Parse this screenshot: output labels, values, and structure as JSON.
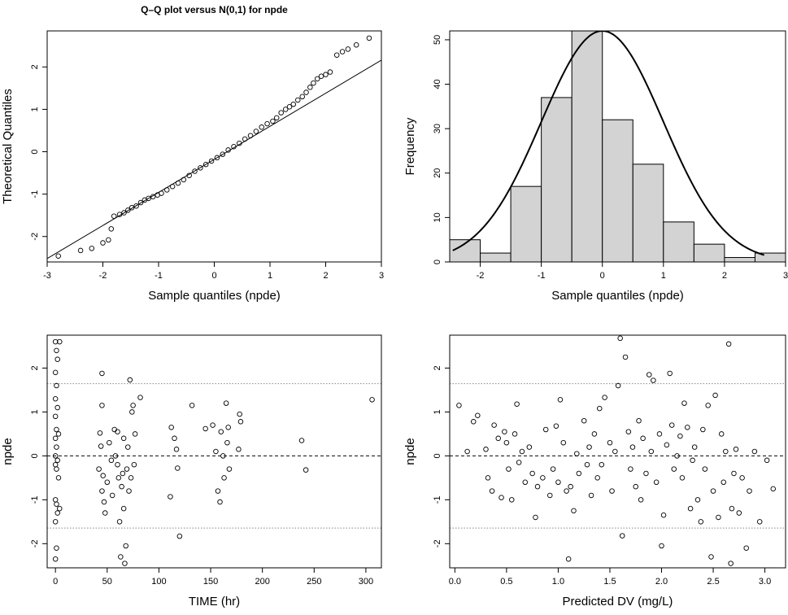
{
  "chart_data": [
    {
      "id": "qq",
      "type": "scatter",
      "title": "Q–Q plot versus N(0,1) for npde",
      "xlabel": "Sample quantiles (npde)",
      "ylabel": "Theoretical Quantiles",
      "xlim": [
        -3,
        3
      ],
      "ylim": [
        -2.6,
        2.85
      ],
      "xticks": [
        -3,
        -2,
        -1,
        0,
        1,
        2,
        3
      ],
      "yticks": [
        -2,
        -1,
        0,
        1,
        2
      ],
      "reference_line": {
        "slope": 0.78,
        "intercept": -0.18
      },
      "points": [
        [
          -2.8,
          -2.46
        ],
        [
          -2.4,
          -2.33
        ],
        [
          -2.2,
          -2.28
        ],
        [
          -2.0,
          -2.15
        ],
        [
          -1.9,
          -2.08
        ],
        [
          -1.85,
          -1.82
        ],
        [
          -1.8,
          -1.52
        ],
        [
          -1.7,
          -1.48
        ],
        [
          -1.62,
          -1.44
        ],
        [
          -1.55,
          -1.38
        ],
        [
          -1.48,
          -1.32
        ],
        [
          -1.4,
          -1.28
        ],
        [
          -1.32,
          -1.2
        ],
        [
          -1.25,
          -1.14
        ],
        [
          -1.18,
          -1.1
        ],
        [
          -1.1,
          -1.06
        ],
        [
          -1.02,
          -1.02
        ],
        [
          -0.95,
          -0.98
        ],
        [
          -0.85,
          -0.9
        ],
        [
          -0.75,
          -0.82
        ],
        [
          -0.65,
          -0.74
        ],
        [
          -0.55,
          -0.66
        ],
        [
          -0.45,
          -0.56
        ],
        [
          -0.35,
          -0.46
        ],
        [
          -0.25,
          -0.38
        ],
        [
          -0.15,
          -0.3
        ],
        [
          -0.05,
          -0.22
        ],
        [
          0.05,
          -0.14
        ],
        [
          0.15,
          -0.06
        ],
        [
          0.25,
          0.04
        ],
        [
          0.35,
          0.12
        ],
        [
          0.45,
          0.2
        ],
        [
          0.55,
          0.3
        ],
        [
          0.65,
          0.38
        ],
        [
          0.75,
          0.48
        ],
        [
          0.85,
          0.58
        ],
        [
          0.95,
          0.66
        ],
        [
          1.05,
          0.72
        ],
        [
          1.12,
          0.8
        ],
        [
          1.2,
          0.92
        ],
        [
          1.28,
          1.0
        ],
        [
          1.35,
          1.06
        ],
        [
          1.42,
          1.12
        ],
        [
          1.5,
          1.22
        ],
        [
          1.58,
          1.3
        ],
        [
          1.65,
          1.4
        ],
        [
          1.72,
          1.52
        ],
        [
          1.78,
          1.62
        ],
        [
          1.85,
          1.72
        ],
        [
          1.92,
          1.78
        ],
        [
          2.0,
          1.82
        ],
        [
          2.08,
          1.88
        ],
        [
          2.2,
          2.28
        ],
        [
          2.3,
          2.36
        ],
        [
          2.4,
          2.42
        ],
        [
          2.55,
          2.52
        ],
        [
          2.78,
          2.68
        ]
      ]
    },
    {
      "id": "hist",
      "type": "bar",
      "title": "",
      "xlabel": "Sample quantiles (npde)",
      "ylabel": "Frequency",
      "xlim": [
        -2.5,
        3
      ],
      "ylim": [
        0,
        52
      ],
      "xticks": [
        -2,
        -1,
        0,
        1,
        2,
        3
      ],
      "yticks": [
        0,
        10,
        20,
        30,
        40,
        50
      ],
      "bin_edges": [
        -2.5,
        -2.0,
        -1.5,
        -1.0,
        -0.5,
        0.0,
        0.5,
        1.0,
        1.5,
        2.0,
        2.5,
        3.0
      ],
      "values": [
        5,
        2,
        17,
        37,
        52,
        32,
        22,
        9,
        4,
        1,
        2
      ],
      "curve": {
        "center": 0,
        "scale": 52,
        "sd": 1,
        "x_range": [
          -2.45,
          2.65
        ]
      }
    },
    {
      "id": "time",
      "type": "scatter",
      "title": "",
      "xlabel": "TIME (hr)",
      "ylabel": "npde",
      "xlim": [
        -8,
        315
      ],
      "ylim": [
        -2.55,
        2.75
      ],
      "xticks": [
        0,
        50,
        100,
        150,
        200,
        250,
        300
      ],
      "yticks": [
        -2,
        -1,
        0,
        1,
        2
      ],
      "hlines": [
        {
          "y": 0,
          "style": "dashed"
        },
        {
          "y": 1.645,
          "style": "dotted"
        },
        {
          "y": -1.645,
          "style": "dotted"
        }
      ],
      "points": [
        [
          0,
          2.6
        ],
        [
          1,
          2.4
        ],
        [
          2,
          2.2
        ],
        [
          0,
          1.9
        ],
        [
          1,
          1.6
        ],
        [
          0,
          1.3
        ],
        [
          2,
          1.1
        ],
        [
          0,
          0.9
        ],
        [
          1,
          0.6
        ],
        [
          0,
          0.4
        ],
        [
          1,
          0.2
        ],
        [
          0,
          0.0
        ],
        [
          2,
          -0.1
        ],
        [
          0,
          -0.2
        ],
        [
          1,
          -0.3
        ],
        [
          0,
          -1.0
        ],
        [
          1,
          -1.1
        ],
        [
          2,
          -1.3
        ],
        [
          0,
          -1.5
        ],
        [
          1,
          -2.1
        ],
        [
          0,
          -2.35
        ],
        [
          3,
          0.5
        ],
        [
          3,
          -0.5
        ],
        [
          4,
          2.6
        ],
        [
          4,
          -1.2
        ],
        [
          45,
          1.88
        ],
        [
          45,
          1.15
        ],
        [
          43,
          0.52
        ],
        [
          44,
          0.22
        ],
        [
          42,
          -0.3
        ],
        [
          46,
          -0.45
        ],
        [
          45,
          -0.8
        ],
        [
          47,
          -1.05
        ],
        [
          48,
          -1.3
        ],
        [
          50,
          -0.6
        ],
        [
          52,
          0.3
        ],
        [
          54,
          -0.1
        ],
        [
          55,
          -0.9
        ],
        [
          57,
          0.6
        ],
        [
          58,
          0.0
        ],
        [
          60,
          -0.2
        ],
        [
          60,
          0.55
        ],
        [
          61,
          -0.5
        ],
        [
          62,
          -1.5
        ],
        [
          63,
          -2.3
        ],
        [
          64,
          -0.7
        ],
        [
          65,
          -0.4
        ],
        [
          66,
          0.4
        ],
        [
          66,
          -1.2
        ],
        [
          67,
          -2.45
        ],
        [
          68,
          -2.05
        ],
        [
          69,
          -0.3
        ],
        [
          70,
          0.2
        ],
        [
          71,
          -0.8
        ],
        [
          72,
          1.73
        ],
        [
          73,
          -0.5
        ],
        [
          74,
          1.0
        ],
        [
          75,
          1.15
        ],
        [
          76,
          -0.2
        ],
        [
          77,
          0.5
        ],
        [
          82,
          1.33
        ],
        [
          112,
          0.65
        ],
        [
          111,
          -0.93
        ],
        [
          115,
          0.4
        ],
        [
          117,
          0.15
        ],
        [
          118,
          -0.28
        ],
        [
          120,
          -1.83
        ],
        [
          132,
          1.15
        ],
        [
          145,
          0.62
        ],
        [
          152,
          0.7
        ],
        [
          155,
          0.1
        ],
        [
          157,
          -0.8
        ],
        [
          159,
          -1.05
        ],
        [
          160,
          0.55
        ],
        [
          162,
          0.0
        ],
        [
          163,
          -0.5
        ],
        [
          165,
          1.2
        ],
        [
          166,
          0.3
        ],
        [
          167,
          0.65
        ],
        [
          168,
          -0.3
        ],
        [
          178,
          0.95
        ],
        [
          179,
          0.78
        ],
        [
          177,
          0.15
        ],
        [
          238,
          0.35
        ],
        [
          242,
          -0.32
        ],
        [
          306,
          1.28
        ]
      ]
    },
    {
      "id": "pred",
      "type": "scatter",
      "title": "",
      "xlabel": "Predicted DV (mg/L)",
      "ylabel": "npde",
      "xlim": [
        -0.05,
        3.2
      ],
      "ylim": [
        -2.55,
        2.75
      ],
      "xticks": [
        0.0,
        0.5,
        1.0,
        1.5,
        2.0,
        2.5,
        3.0
      ],
      "yticks": [
        -2,
        -1,
        0,
        1,
        2
      ],
      "hlines": [
        {
          "y": 0,
          "style": "dashed"
        },
        {
          "y": 1.645,
          "style": "dotted"
        },
        {
          "y": -1.645,
          "style": "dotted"
        }
      ],
      "points": [
        [
          0.04,
          1.15
        ],
        [
          0.12,
          0.1
        ],
        [
          0.18,
          0.78
        ],
        [
          0.22,
          0.92
        ],
        [
          0.3,
          0.15
        ],
        [
          0.32,
          -0.5
        ],
        [
          0.36,
          -0.8
        ],
        [
          0.38,
          0.7
        ],
        [
          0.42,
          0.4
        ],
        [
          0.45,
          -0.95
        ],
        [
          0.48,
          0.55
        ],
        [
          0.5,
          0.3
        ],
        [
          0.52,
          -0.3
        ],
        [
          0.55,
          -1.0
        ],
        [
          0.58,
          0.5
        ],
        [
          0.6,
          1.18
        ],
        [
          0.62,
          -0.15
        ],
        [
          0.65,
          0.1
        ],
        [
          0.68,
          -0.6
        ],
        [
          0.72,
          0.2
        ],
        [
          0.75,
          -0.4
        ],
        [
          0.78,
          -1.4
        ],
        [
          0.8,
          -0.7
        ],
        [
          0.85,
          -0.5
        ],
        [
          0.88,
          0.6
        ],
        [
          0.92,
          -0.9
        ],
        [
          0.95,
          -0.3
        ],
        [
          0.98,
          0.68
        ],
        [
          1.0,
          -0.6
        ],
        [
          1.02,
          1.28
        ],
        [
          1.05,
          0.3
        ],
        [
          1.08,
          -0.8
        ],
        [
          1.1,
          -2.35
        ],
        [
          1.12,
          -0.7
        ],
        [
          1.15,
          -1.25
        ],
        [
          1.18,
          0.05
        ],
        [
          1.2,
          -0.4
        ],
        [
          1.25,
          0.8
        ],
        [
          1.28,
          -0.2
        ],
        [
          1.3,
          0.2
        ],
        [
          1.32,
          -0.9
        ],
        [
          1.35,
          0.5
        ],
        [
          1.38,
          -0.5
        ],
        [
          1.4,
          1.08
        ],
        [
          1.42,
          -0.2
        ],
        [
          1.45,
          1.33
        ],
        [
          1.5,
          0.3
        ],
        [
          1.52,
          -0.8
        ],
        [
          1.55,
          0.1
        ],
        [
          1.58,
          1.6
        ],
        [
          1.6,
          2.68
        ],
        [
          1.62,
          -1.82
        ],
        [
          1.65,
          2.25
        ],
        [
          1.68,
          0.55
        ],
        [
          1.7,
          -0.3
        ],
        [
          1.72,
          0.2
        ],
        [
          1.75,
          -0.7
        ],
        [
          1.78,
          0.8
        ],
        [
          1.8,
          -1.0
        ],
        [
          1.82,
          0.4
        ],
        [
          1.85,
          -0.4
        ],
        [
          1.88,
          1.85
        ],
        [
          1.9,
          0.1
        ],
        [
          1.92,
          1.72
        ],
        [
          1.95,
          -0.6
        ],
        [
          1.98,
          0.5
        ],
        [
          2.0,
          -2.05
        ],
        [
          2.02,
          -1.35
        ],
        [
          2.05,
          0.25
        ],
        [
          2.08,
          1.88
        ],
        [
          2.1,
          0.7
        ],
        [
          2.12,
          -0.3
        ],
        [
          2.15,
          0.0
        ],
        [
          2.18,
          0.45
        ],
        [
          2.2,
          -0.5
        ],
        [
          2.22,
          1.2
        ],
        [
          2.25,
          0.65
        ],
        [
          2.28,
          -1.2
        ],
        [
          2.3,
          -0.1
        ],
        [
          2.32,
          0.2
        ],
        [
          2.35,
          -1.0
        ],
        [
          2.38,
          -1.5
        ],
        [
          2.4,
          0.6
        ],
        [
          2.42,
          -0.3
        ],
        [
          2.45,
          1.15
        ],
        [
          2.48,
          -2.3
        ],
        [
          2.5,
          -0.8
        ],
        [
          2.52,
          1.38
        ],
        [
          2.55,
          -1.4
        ],
        [
          2.58,
          0.5
        ],
        [
          2.6,
          -0.6
        ],
        [
          2.62,
          0.1
        ],
        [
          2.65,
          2.55
        ],
        [
          2.67,
          -2.45
        ],
        [
          2.68,
          -1.2
        ],
        [
          2.7,
          -0.4
        ],
        [
          2.72,
          0.15
        ],
        [
          2.75,
          -1.3
        ],
        [
          2.78,
          -0.5
        ],
        [
          2.82,
          -2.1
        ],
        [
          2.85,
          -0.8
        ],
        [
          2.9,
          0.1
        ],
        [
          2.95,
          -1.5
        ],
        [
          3.02,
          -0.1
        ],
        [
          3.08,
          -0.75
        ]
      ]
    }
  ]
}
